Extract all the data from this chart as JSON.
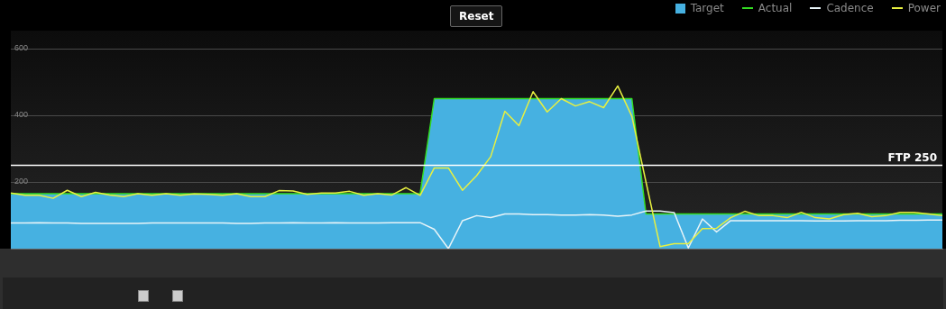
{
  "chart_data": {
    "type": "line",
    "categories": [
      null,
      null,
      null,
      null,
      null,
      null,
      null,
      null,
      null,
      null,
      null,
      null,
      null,
      null,
      null,
      null,
      null,
      null,
      null,
      null,
      null,
      null,
      null,
      null,
      null,
      null,
      null,
      null,
      null,
      null,
      null,
      null,
      null,
      null,
      null,
      null,
      null,
      null,
      null,
      null,
      null,
      null,
      null,
      null,
      null,
      null,
      null,
      null,
      null,
      null,
      null,
      null,
      null,
      null,
      null,
      null,
      null,
      null,
      null,
      null,
      null,
      null,
      null,
      null,
      null,
      null,
      null
    ],
    "series": [
      {
        "name": "Target",
        "type": "area",
        "color": "#46b1e1",
        "values": [
          165,
          165,
          165,
          165,
          165,
          165,
          165,
          165,
          165,
          165,
          165,
          165,
          165,
          165,
          165,
          165,
          165,
          165,
          165,
          165,
          165,
          165,
          165,
          165,
          165,
          165,
          165,
          165,
          165,
          165,
          450,
          450,
          450,
          450,
          450,
          450,
          450,
          450,
          450,
          450,
          450,
          450,
          450,
          450,
          450,
          104,
          104,
          104,
          104,
          104,
          104,
          104,
          104,
          104,
          104,
          104,
          104,
          104,
          104,
          104,
          104,
          104,
          104,
          104,
          104,
          104,
          104
        ]
      },
      {
        "name": "Actual",
        "color": "#33dd22",
        "values": [
          165,
          165,
          165,
          165,
          165,
          165,
          165,
          165,
          165,
          165,
          165,
          165,
          165,
          165,
          165,
          165,
          165,
          165,
          165,
          165,
          165,
          165,
          165,
          165,
          165,
          165,
          165,
          165,
          165,
          165,
          450,
          450,
          450,
          450,
          450,
          450,
          450,
          450,
          450,
          450,
          450,
          450,
          450,
          450,
          450,
          104,
          104,
          104,
          104,
          104,
          104,
          104,
          104,
          104,
          104,
          104,
          104,
          104,
          104,
          104,
          104,
          104,
          104,
          104,
          104,
          104,
          104
        ]
      },
      {
        "name": "Cadence",
        "color": "#e8f4f8",
        "values": [
          77,
          77,
          78,
          77,
          77,
          76,
          76,
          76,
          76,
          76,
          77,
          77,
          77,
          77,
          77,
          77,
          76,
          76,
          77,
          77,
          78,
          77,
          77,
          78,
          77,
          77,
          77,
          78,
          78,
          78,
          58,
          0,
          84,
          99,
          93,
          104,
          104,
          102,
          102,
          101,
          101,
          102,
          101,
          97,
          101,
          113,
          113,
          108,
          2,
          89,
          50,
          84,
          84,
          84,
          84,
          84,
          84,
          83,
          83,
          83,
          84,
          84,
          84,
          85,
          85,
          86,
          86
        ]
      },
      {
        "name": "Power",
        "color": "#e8f040",
        "values": [
          167,
          160,
          160,
          151,
          175,
          156,
          169,
          161,
          156,
          165,
          160,
          165,
          160,
          164,
          163,
          160,
          165,
          156,
          156,
          174,
          173,
          163,
          167,
          167,
          172,
          160,
          165,
          161,
          183,
          160,
          242,
          242,
          175,
          219,
          276,
          412,
          369,
          471,
          410,
          450,
          428,
          441,
          423,
          488,
          397,
          200,
          6,
          15,
          15,
          60,
          61,
          93,
          112,
          99,
          99,
          93,
          109,
          93,
          89,
          102,
          106,
          96,
          99,
          109,
          109,
          104,
          99
        ]
      }
    ],
    "ylim": [
      0,
      600
    ],
    "yticks": [
      200,
      400,
      600
    ],
    "grid": "y",
    "legend": "top right",
    "marker": "none",
    "tick_labels": "y",
    "ref_lines": [
      {
        "axis": "y",
        "value": 250,
        "label": "FTP 250",
        "color": "#ffffff"
      }
    ],
    "annotations": [
      "Reset"
    ]
  }
}
